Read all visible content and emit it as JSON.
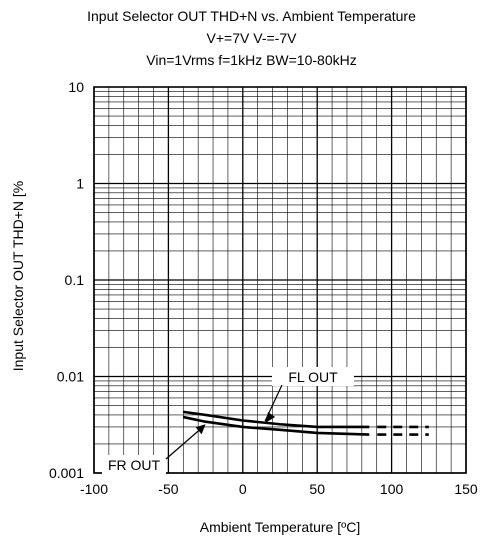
{
  "chart_data": {
    "type": "line",
    "title": "Input Selector OUT THD+N vs. Ambient Temperature",
    "subtitle": [
      "V+=7V V-=-7V",
      "Vin=1Vrms f=1kHz BW=10-80kHz"
    ],
    "xlabel": "Ambient Temperature [ºC]",
    "ylabel": "Input Selector OUT THD+N [%",
    "xlim": [
      -100,
      150
    ],
    "ylim": [
      0.001,
      10
    ],
    "yscale": "log",
    "xticks": [
      "-100",
      "-50",
      "0",
      "50",
      "100",
      "150"
    ],
    "yticks": [
      "0.001",
      "0.01",
      "0.1",
      "1",
      "10"
    ],
    "grid": true,
    "series": [
      {
        "name": "FL OUT",
        "x": [
          -40,
          -25,
          0,
          25,
          50,
          85
        ],
        "y": [
          0.0043,
          0.004,
          0.0035,
          0.0032,
          0.003,
          0.003
        ]
      },
      {
        "name": "FR OUT",
        "x": [
          -40,
          -25,
          0,
          25,
          50,
          85
        ],
        "y": [
          0.0038,
          0.0034,
          0.003,
          0.0028,
          0.0026,
          0.0025
        ]
      }
    ],
    "annotations": [
      {
        "text": "FL OUT",
        "points_to": "FL OUT"
      },
      {
        "text": "FR OUT",
        "points_to": "FR OUT"
      }
    ]
  }
}
